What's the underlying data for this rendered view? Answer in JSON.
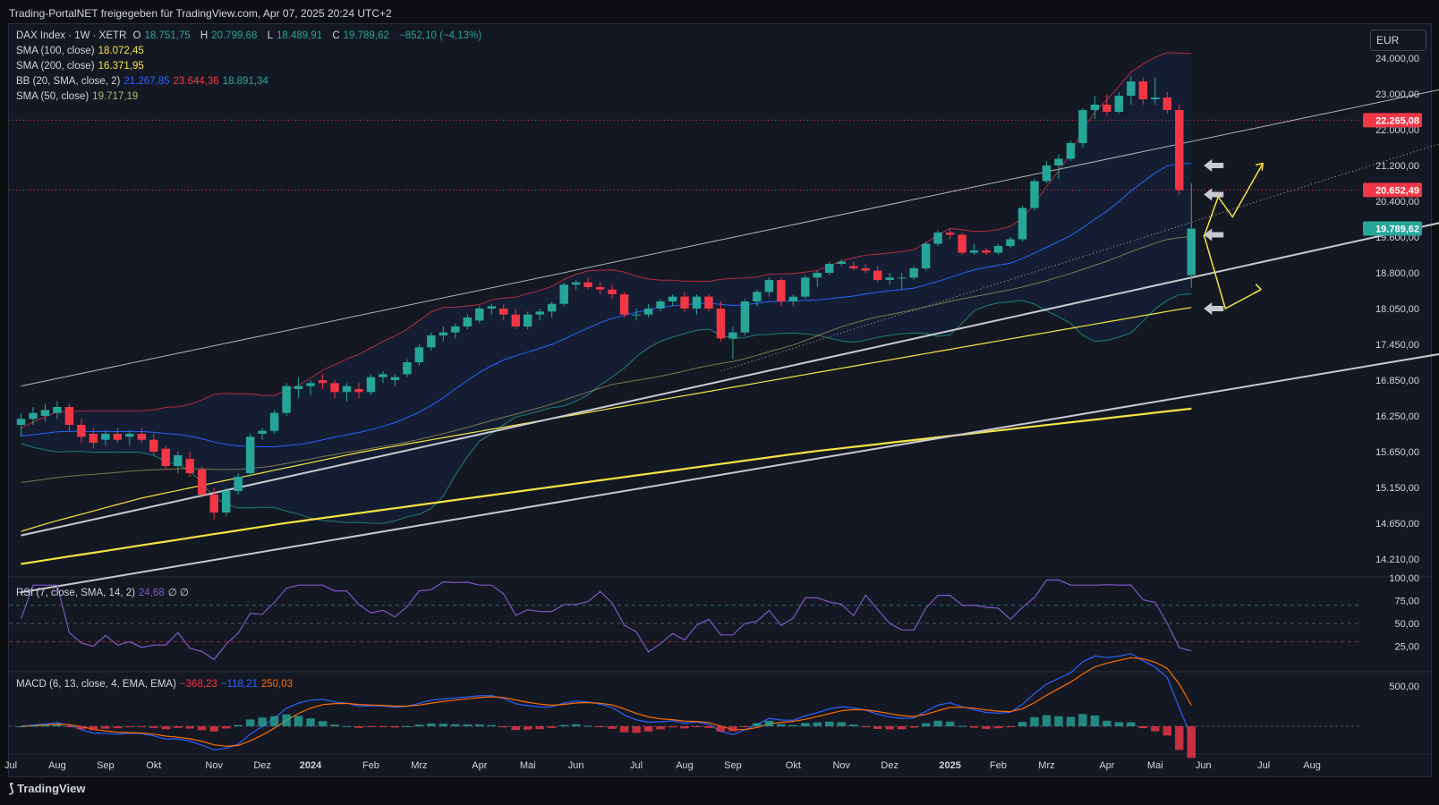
{
  "header": {
    "watermark": "Trading-PortalNET freigegeben für TradingView.com, Apr 07, 2025 20:24 UTC+2"
  },
  "footer": {
    "brand": "TradingView"
  },
  "currency": "EUR",
  "legend": {
    "symbol": "DAX Index · 1W · XETR",
    "o_label": "O",
    "o": "18.751,75",
    "h_label": "H",
    "h": "20.799,68",
    "l_label": "L",
    "l": "18.489,91",
    "c_label": "C",
    "c": "19.789,62",
    "change": "−852,10 (−4,13%)",
    "sma100_label": "SMA (100, close)",
    "sma100": "18.072,45",
    "sma200_label": "SMA (200, close)",
    "sma200": "16.371,95",
    "bb_label": "BB (20, SMA, close, 2)",
    "bb_mid": "21.267,85",
    "bb_up": "23.644,36",
    "bb_low": "18.891,34",
    "sma50_label": "SMA (50, close)",
    "sma50": "19.717,19",
    "rsi_label": "RSI (7, close, SMA, 14, 2)",
    "rsi_value": "24,68",
    "rsi_extra": "∅ ∅",
    "macd_label": "MACD (6, 13, close, 4, EMA, EMA)",
    "macd_hist": "−368,23",
    "macd_line": "−118,21",
    "macd_signal": "250,03"
  },
  "colors": {
    "up": "#26a69a",
    "down": "#f23645",
    "sma100": "#f5e342",
    "sma200": "#f5e342",
    "bb_mid": "#2962ff",
    "bb_up": "#f23645",
    "bb_low": "#22ab94",
    "sma50": "#bdb76b",
    "rsi": "#7e57c2",
    "macd": "#2962ff",
    "signal": "#ff6d00",
    "arrow": "#f5e342"
  },
  "chart_data": {
    "type": "candlestick",
    "price_ticks": [
      "24.000,00",
      "23.000,00",
      "22.000,00",
      "21.200,00",
      "20.400,00",
      "19.600,00",
      "18.800,00",
      "18.050,00",
      "17.450,00",
      "16.850,00",
      "16.250,00",
      "15.650,00",
      "15.150,00",
      "14.650,00",
      "14.210,00"
    ],
    "price_tick_values": [
      24000,
      23000,
      22000,
      21200,
      20400,
      19600,
      18800,
      18050,
      17450,
      16850,
      16250,
      15650,
      15150,
      14650,
      14210
    ],
    "price_labels": [
      {
        "text": "22.265,08",
        "value": 22265,
        "color": "#f23645"
      },
      {
        "text": "20.652,49",
        "value": 20652,
        "color": "#f23645"
      },
      {
        "text": "19.789,62",
        "value": 19790,
        "color": "#26a69a"
      }
    ],
    "rsi_ticks": [
      "100,00",
      "75,00",
      "50,00",
      "25,00"
    ],
    "rsi_tick_values": [
      100,
      75,
      50,
      25
    ],
    "macd_ticks": [
      "500,00"
    ],
    "macd_tick_values": [
      500
    ],
    "x_labels": [
      {
        "text": "Jul",
        "i": -1
      },
      {
        "text": "Aug",
        "i": 3
      },
      {
        "text": "Sep",
        "i": 7
      },
      {
        "text": "Okt",
        "i": 11
      },
      {
        "text": "Nov",
        "i": 16
      },
      {
        "text": "Dez",
        "i": 20
      },
      {
        "text": "2024",
        "i": 24
      },
      {
        "text": "Feb",
        "i": 29
      },
      {
        "text": "Mrz",
        "i": 33
      },
      {
        "text": "Apr",
        "i": 38
      },
      {
        "text": "Mai",
        "i": 42
      },
      {
        "text": "Jun",
        "i": 46
      },
      {
        "text": "Jul",
        "i": 51
      },
      {
        "text": "Aug",
        "i": 55
      },
      {
        "text": "Sep",
        "i": 59
      },
      {
        "text": "Okt",
        "i": 64
      },
      {
        "text": "Nov",
        "i": 68
      },
      {
        "text": "Dez",
        "i": 72
      },
      {
        "text": "2025",
        "i": 77
      },
      {
        "text": "Feb",
        "i": 81
      },
      {
        "text": "Mrz",
        "i": 85
      },
      {
        "text": "Apr",
        "i": 90
      },
      {
        "text": "Mai",
        "i": 94
      },
      {
        "text": "Jun",
        "i": 98
      },
      {
        "text": "Jul",
        "i": 103
      },
      {
        "text": "Aug",
        "i": 107
      }
    ],
    "candles": [
      [
        16100,
        16300,
        15900,
        16200
      ],
      [
        16200,
        16400,
        16100,
        16300
      ],
      [
        16250,
        16450,
        16150,
        16350
      ],
      [
        16300,
        16500,
        16200,
        16400
      ],
      [
        16400,
        16450,
        16000,
        16100
      ],
      [
        16100,
        16200,
        15800,
        15900
      ],
      [
        15950,
        16050,
        15700,
        15800
      ],
      [
        15850,
        16000,
        15750,
        15950
      ],
      [
        15950,
        16050,
        15800,
        15850
      ],
      [
        15900,
        16000,
        15750,
        15950
      ],
      [
        15950,
        16050,
        15800,
        15850
      ],
      [
        15850,
        15950,
        15600,
        15650
      ],
      [
        15700,
        15750,
        15400,
        15450
      ],
      [
        15450,
        15650,
        15350,
        15600
      ],
      [
        15550,
        15650,
        15300,
        15350
      ],
      [
        15400,
        15450,
        15000,
        15050
      ],
      [
        15050,
        15150,
        14700,
        14800
      ],
      [
        14800,
        15150,
        14750,
        15100
      ],
      [
        15100,
        15350,
        15050,
        15300
      ],
      [
        15350,
        15950,
        15300,
        15900
      ],
      [
        15950,
        16050,
        15850,
        16000
      ],
      [
        16000,
        16350,
        15950,
        16300
      ],
      [
        16300,
        16800,
        16250,
        16750
      ],
      [
        16700,
        16900,
        16550,
        16750
      ],
      [
        16750,
        16850,
        16600,
        16800
      ],
      [
        16850,
        16950,
        16700,
        16800
      ],
      [
        16800,
        16850,
        16550,
        16650
      ],
      [
        16650,
        16800,
        16500,
        16750
      ],
      [
        16700,
        16800,
        16550,
        16650
      ],
      [
        16650,
        16950,
        16600,
        16900
      ],
      [
        16900,
        17000,
        16800,
        16950
      ],
      [
        16850,
        16950,
        16750,
        16900
      ],
      [
        16950,
        17200,
        16900,
        17150
      ],
      [
        17150,
        17450,
        17100,
        17400
      ],
      [
        17400,
        17650,
        17350,
        17600
      ],
      [
        17600,
        17750,
        17500,
        17650
      ],
      [
        17650,
        17800,
        17550,
        17750
      ],
      [
        17750,
        17950,
        17700,
        17900
      ],
      [
        17850,
        18100,
        17800,
        18050
      ],
      [
        18050,
        18150,
        17950,
        18100
      ],
      [
        18050,
        18150,
        17850,
        17950
      ],
      [
        17950,
        18050,
        17700,
        17750
      ],
      [
        17750,
        18000,
        17700,
        17950
      ],
      [
        17950,
        18050,
        17850,
        18000
      ],
      [
        18000,
        18200,
        17900,
        18150
      ],
      [
        18150,
        18600,
        18100,
        18550
      ],
      [
        18550,
        18650,
        18450,
        18600
      ],
      [
        18600,
        18700,
        18450,
        18500
      ],
      [
        18500,
        18600,
        18350,
        18450
      ],
      [
        18450,
        18550,
        18250,
        18350
      ],
      [
        18350,
        18400,
        17900,
        17950
      ],
      [
        17950,
        18050,
        17850,
        17950
      ],
      [
        17950,
        18150,
        17900,
        18050
      ],
      [
        18050,
        18250,
        18000,
        18200
      ],
      [
        18200,
        18350,
        18100,
        18300
      ],
      [
        18300,
        18400,
        18000,
        18050
      ],
      [
        18050,
        18350,
        17950,
        18300
      ],
      [
        18300,
        18350,
        18000,
        18050
      ],
      [
        18050,
        18200,
        17500,
        17550
      ],
      [
        17550,
        17750,
        17200,
        17650
      ],
      [
        17650,
        18250,
        17600,
        18200
      ],
      [
        18200,
        18450,
        18100,
        18400
      ],
      [
        18400,
        18700,
        18300,
        18650
      ],
      [
        18650,
        18700,
        18100,
        18200
      ],
      [
        18200,
        18350,
        18100,
        18300
      ],
      [
        18300,
        18750,
        18250,
        18700
      ],
      [
        18700,
        18850,
        18500,
        18800
      ],
      [
        18800,
        19050,
        18750,
        19000
      ],
      [
        19000,
        19100,
        18950,
        19050
      ],
      [
        18950,
        19050,
        18850,
        18900
      ],
      [
        18900,
        19000,
        18800,
        18850
      ],
      [
        18850,
        18950,
        18600,
        18650
      ],
      [
        18650,
        18800,
        18550,
        18700
      ],
      [
        18700,
        18800,
        18450,
        18700
      ],
      [
        18700,
        18950,
        18650,
        18900
      ],
      [
        18900,
        19500,
        18850,
        19450
      ],
      [
        19450,
        19750,
        19400,
        19700
      ],
      [
        19700,
        19800,
        19550,
        19650
      ],
      [
        19650,
        19700,
        19200,
        19250
      ],
      [
        19250,
        19450,
        19200,
        19300
      ],
      [
        19300,
        19350,
        19200,
        19250
      ],
      [
        19250,
        19450,
        19200,
        19400
      ],
      [
        19400,
        19600,
        19350,
        19550
      ],
      [
        19550,
        20300,
        19500,
        20250
      ],
      [
        20250,
        20900,
        20200,
        20850
      ],
      [
        20850,
        21300,
        20800,
        21200
      ],
      [
        21200,
        21450,
        20900,
        21350
      ],
      [
        21350,
        21750,
        21300,
        21700
      ],
      [
        21700,
        22600,
        21600,
        22550
      ],
      [
        22550,
        22950,
        22300,
        22700
      ],
      [
        22700,
        23000,
        22400,
        22500
      ],
      [
        22500,
        23050,
        22450,
        22950
      ],
      [
        22950,
        23500,
        22700,
        23350
      ],
      [
        23350,
        23450,
        22700,
        22850
      ],
      [
        22850,
        23450,
        22700,
        22900
      ],
      [
        22900,
        23050,
        22450,
        22550
      ],
      [
        22550,
        22700,
        20550,
        20650
      ],
      [
        18750,
        20800,
        18490,
        19790
      ]
    ],
    "channel_lines": [
      {
        "x0": 0,
        "y0": 16750,
        "x1": 140,
        "y1": 24700,
        "style": "upper"
      },
      {
        "x0": 0,
        "y0": 14500,
        "x1": 140,
        "y1": 21250,
        "style": "mid"
      },
      {
        "x0": 0,
        "y0": 13800,
        "x1": 140,
        "y1": 18050,
        "style": "lower"
      },
      {
        "x0": 58,
        "y0": 17000,
        "x1": 140,
        "y1": 24000,
        "style": "dotted"
      }
    ],
    "hlines": [
      22265,
      20652
    ],
    "rsi_levels": [
      70,
      50,
      30
    ],
    "x_min": -1,
    "x_max": 111
  }
}
